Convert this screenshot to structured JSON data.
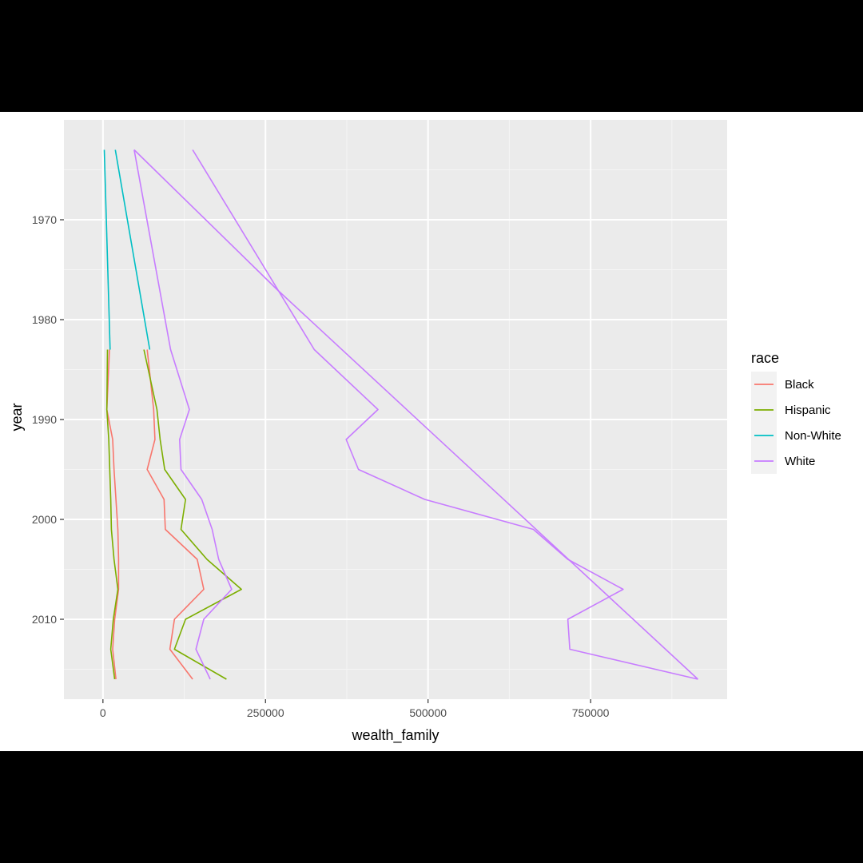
{
  "chart_data": {
    "type": "line",
    "title": "",
    "xlabel": "wealth_family",
    "ylabel": "year",
    "xlim": [
      -60000,
      960000
    ],
    "ylim": [
      2018,
      1960
    ],
    "x_ticks": [
      0,
      250000,
      500000,
      750000
    ],
    "x_tick_labels": [
      "0",
      "250000",
      "500000",
      "750000"
    ],
    "y_ticks": [
      1970,
      1980,
      1990,
      2000,
      2010
    ],
    "y_tick_labels": [
      "1970",
      "1980",
      "1990",
      "2000",
      "2010"
    ],
    "grid": true,
    "legend": {
      "title": "race",
      "position": "right"
    },
    "series": [
      {
        "name": "Black",
        "color": "#F8766D",
        "paths": [
          [
            [
              10000,
              1983
            ],
            [
              6000,
              1989
            ],
            [
              15000,
              1992
            ],
            [
              17000,
              1995
            ],
            [
              20000,
              1998
            ],
            [
              23000,
              2001
            ],
            [
              24000,
              2004
            ],
            [
              24000,
              2007
            ],
            [
              18000,
              2010
            ],
            [
              15000,
              2013
            ],
            [
              20000,
              2016
            ]
          ],
          [
            [
              68000,
              1983
            ],
            [
              78000,
              1989
            ],
            [
              80000,
              1992
            ],
            [
              68000,
              1995
            ],
            [
              94000,
              1998
            ],
            [
              96000,
              2001
            ],
            [
              145000,
              2004
            ],
            [
              155000,
              2007
            ],
            [
              110000,
              2010
            ],
            [
              103000,
              2013
            ],
            [
              138000,
              2016
            ]
          ]
        ]
      },
      {
        "name": "Hispanic",
        "color": "#7CAE00",
        "paths": [
          [
            [
              7000,
              1983
            ],
            [
              6000,
              1989
            ],
            [
              9000,
              1992
            ],
            [
              12000,
              1998
            ],
            [
              13000,
              2001
            ],
            [
              17000,
              2004
            ],
            [
              23000,
              2007
            ],
            [
              16000,
              2010
            ],
            [
              12000,
              2013
            ],
            [
              18000,
              2016
            ]
          ],
          [
            [
              63000,
              1983
            ],
            [
              83000,
              1989
            ],
            [
              88000,
              1992
            ],
            [
              95000,
              1995
            ],
            [
              127000,
              1998
            ],
            [
              120000,
              2001
            ],
            [
              160000,
              2004
            ],
            [
              213000,
              2007
            ],
            [
              127000,
              2010
            ],
            [
              110000,
              2013
            ],
            [
              190000,
              2016
            ]
          ]
        ]
      },
      {
        "name": "Non-White",
        "color": "#00BFC4",
        "paths": [
          [
            [
              2000,
              1963
            ],
            [
              11000,
              1983
            ]
          ],
          [
            [
              19000,
              1963
            ],
            [
              72000,
              1983
            ]
          ]
        ]
      },
      {
        "name": "White",
        "color": "#C77CFF",
        "paths": [
          [
            [
              48000,
              1963
            ],
            [
              104000,
              1983
            ],
            [
              133000,
              1989
            ],
            [
              118000,
              1992
            ],
            [
              120000,
              1995
            ],
            [
              152000,
              1998
            ],
            [
              168000,
              2001
            ],
            [
              178000,
              2004
            ],
            [
              198000,
              2007
            ],
            [
              155000,
              2010
            ],
            [
              143000,
              2013
            ],
            [
              165000,
              2016
            ]
          ],
          [
            [
              138000,
              1963
            ],
            [
              325000,
              1983
            ],
            [
              423000,
              1989
            ],
            [
              374000,
              1992
            ],
            [
              393000,
              1995
            ],
            [
              495000,
              1998
            ],
            [
              662000,
              2001
            ],
            [
              715000,
              2004
            ],
            [
              800000,
              2007
            ],
            [
              715000,
              2010
            ],
            [
              718000,
              2013
            ],
            [
              915000,
              2016
            ]
          ],
          [
            [
              48000,
              1963
            ],
            [
              268000,
              1977
            ],
            [
              915000,
              2016
            ]
          ]
        ]
      }
    ]
  }
}
